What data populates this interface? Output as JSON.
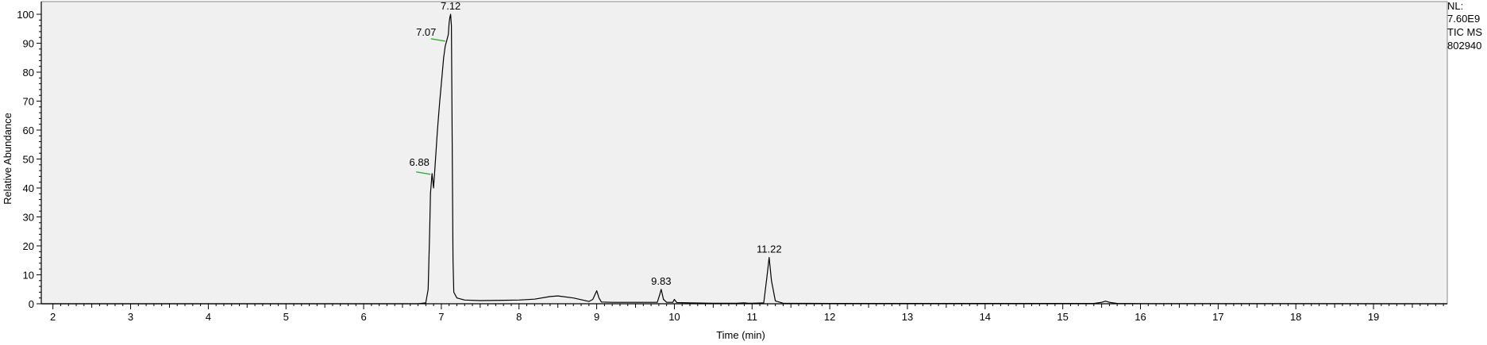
{
  "chart_data": {
    "type": "line",
    "title": "",
    "xlabel": "Time (min)",
    "ylabel": "Relative Abundance",
    "xlim": [
      1.85,
      19.95
    ],
    "ylim": [
      0,
      100
    ],
    "x_ticks": [
      2,
      3,
      4,
      5,
      6,
      7,
      8,
      9,
      10,
      11,
      12,
      13,
      14,
      15,
      16,
      17,
      18,
      19
    ],
    "y_ticks": [
      0,
      10,
      20,
      30,
      40,
      50,
      60,
      70,
      80,
      90,
      100
    ],
    "grid": false,
    "colors": {
      "trace": "#000000",
      "plot_bg": "#f0f0f0",
      "marker": "#22aa22"
    },
    "info": [
      "NL:",
      "7.60E9",
      "TIC  MS",
      "802940"
    ],
    "peak_labels": [
      {
        "text": "6.88",
        "x": 6.88,
        "y": 45
      },
      {
        "text": "7.07",
        "x": 7.07,
        "y": 91
      },
      {
        "text": "7.12",
        "x": 7.12,
        "y": 100
      },
      {
        "text": "9.83",
        "x": 9.83,
        "y": 5
      },
      {
        "text": "11.22",
        "x": 11.22,
        "y": 16
      }
    ],
    "series": [
      {
        "x": [
          1.85,
          6.7,
          6.8,
          6.83,
          6.85,
          6.86,
          6.88,
          6.9,
          6.92,
          6.95,
          6.98,
          7.0,
          7.03,
          7.05,
          7.07,
          7.09,
          7.1,
          7.11,
          7.12,
          7.13,
          7.14,
          7.15,
          7.16,
          7.2,
          7.3,
          7.5,
          7.8,
          8.0,
          8.2,
          8.4,
          8.5,
          8.7,
          8.9,
          8.95,
          9.0,
          9.03,
          9.06,
          9.2,
          9.5,
          9.78,
          9.81,
          9.83,
          9.86,
          9.9,
          9.98,
          10.0,
          10.03,
          10.2,
          10.5,
          10.8,
          10.9,
          10.95,
          11.0,
          11.15,
          11.19,
          11.22,
          11.25,
          11.3,
          11.4,
          12.0,
          15.4,
          15.5,
          15.55,
          15.6,
          15.7,
          16.0,
          19.95
        ],
        "y": [
          0,
          0,
          0.3,
          5,
          25,
          38,
          45,
          40,
          48,
          60,
          70,
          76,
          85,
          89,
          91,
          93,
          97,
          99,
          100,
          96,
          55,
          15,
          4,
          2,
          1.3,
          1.1,
          1.2,
          1.3,
          1.6,
          2.5,
          2.7,
          2.0,
          0.8,
          1.5,
          4.5,
          2.0,
          0.6,
          0.5,
          0.5,
          0.5,
          3.0,
          5.0,
          1.5,
          0.5,
          0.5,
          1.5,
          0.4,
          0.3,
          0.2,
          0.2,
          0.3,
          0.2,
          0.2,
          0.3,
          9.0,
          16.0,
          8.0,
          1.0,
          0.2,
          0.1,
          0.1,
          0.5,
          0.9,
          0.5,
          0.1,
          0.05,
          0
        ]
      }
    ]
  }
}
